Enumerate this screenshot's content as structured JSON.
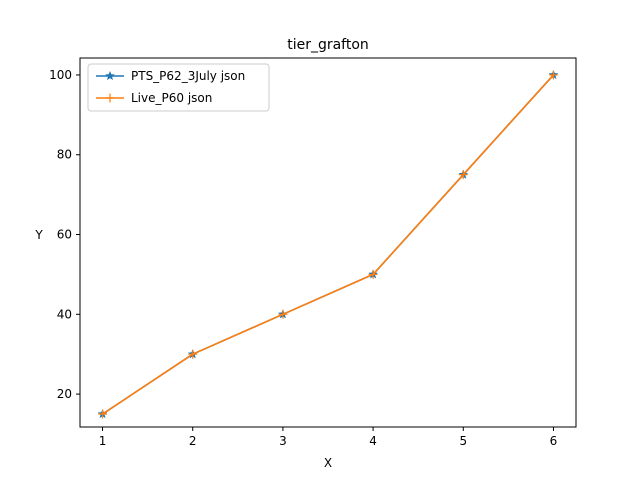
{
  "chart_data": {
    "type": "line",
    "title": "tier_grafton",
    "xlabel": "X",
    "ylabel": "Y",
    "x": [
      1,
      2,
      3,
      4,
      5,
      6
    ],
    "xlim": [
      0.75,
      6.25
    ],
    "ylim": [
      11.75,
      104.25
    ],
    "xticks": [
      1,
      2,
      3,
      4,
      5,
      6
    ],
    "yticks": [
      20,
      40,
      60,
      80,
      100
    ],
    "grid": false,
    "legend_position": "top-left",
    "series": [
      {
        "name": "PTS_P62_3July json",
        "values": [
          15,
          30,
          40,
          50,
          75,
          100
        ],
        "color": "#1f77b4",
        "marker": "star"
      },
      {
        "name": "Live_P60 json",
        "values": [
          15,
          30,
          40,
          50,
          75,
          100
        ],
        "color": "#ff7f0e",
        "marker": "plus"
      }
    ]
  }
}
